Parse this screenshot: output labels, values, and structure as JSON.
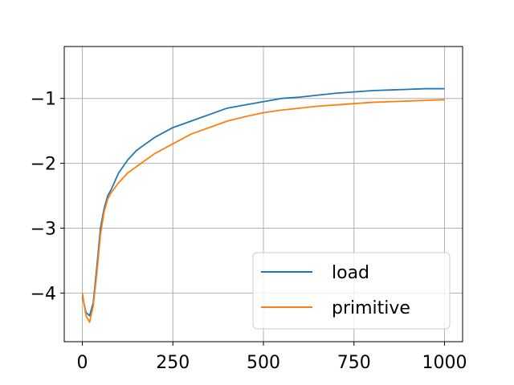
{
  "chart_data": {
    "type": "line",
    "title": "",
    "xlabel": "",
    "ylabel": "",
    "xlim": [
      -50,
      1050
    ],
    "ylim": [
      -4.75,
      -0.2
    ],
    "grid": true,
    "legend_position": "lower-right",
    "x_ticks": [
      {
        "value": 0,
        "label": "0"
      },
      {
        "value": 250,
        "label": "250"
      },
      {
        "value": 500,
        "label": "500"
      },
      {
        "value": 750,
        "label": "750"
      },
      {
        "value": 1000,
        "label": "1000"
      }
    ],
    "y_ticks": [
      {
        "value": -4,
        "label": "−4"
      },
      {
        "value": -3,
        "label": "−3"
      },
      {
        "value": -2,
        "label": "−2"
      },
      {
        "value": -1,
        "label": "−1"
      }
    ],
    "x": [
      0,
      10,
      20,
      30,
      40,
      50,
      60,
      70,
      80,
      100,
      125,
      150,
      175,
      200,
      250,
      300,
      350,
      400,
      450,
      500,
      550,
      600,
      650,
      700,
      750,
      800,
      850,
      900,
      950,
      1000
    ],
    "series": [
      {
        "name": "load",
        "color": "#1f77b4",
        "values": [
          -4.05,
          -4.3,
          -4.35,
          -4.15,
          -3.6,
          -3.0,
          -2.7,
          -2.5,
          -2.4,
          -2.15,
          -1.95,
          -1.8,
          -1.7,
          -1.6,
          -1.45,
          -1.35,
          -1.25,
          -1.15,
          -1.1,
          -1.05,
          -1.0,
          -0.98,
          -0.95,
          -0.92,
          -0.9,
          -0.88,
          -0.87,
          -0.86,
          -0.85,
          -0.85
        ]
      },
      {
        "name": "primitive",
        "color": "#ff7f0e",
        "values": [
          -4.0,
          -4.35,
          -4.45,
          -4.2,
          -3.7,
          -3.1,
          -2.75,
          -2.55,
          -2.45,
          -2.3,
          -2.15,
          -2.05,
          -1.95,
          -1.85,
          -1.7,
          -1.55,
          -1.45,
          -1.35,
          -1.28,
          -1.22,
          -1.18,
          -1.15,
          -1.12,
          -1.1,
          -1.08,
          -1.06,
          -1.05,
          -1.04,
          -1.03,
          -1.02
        ]
      }
    ]
  }
}
